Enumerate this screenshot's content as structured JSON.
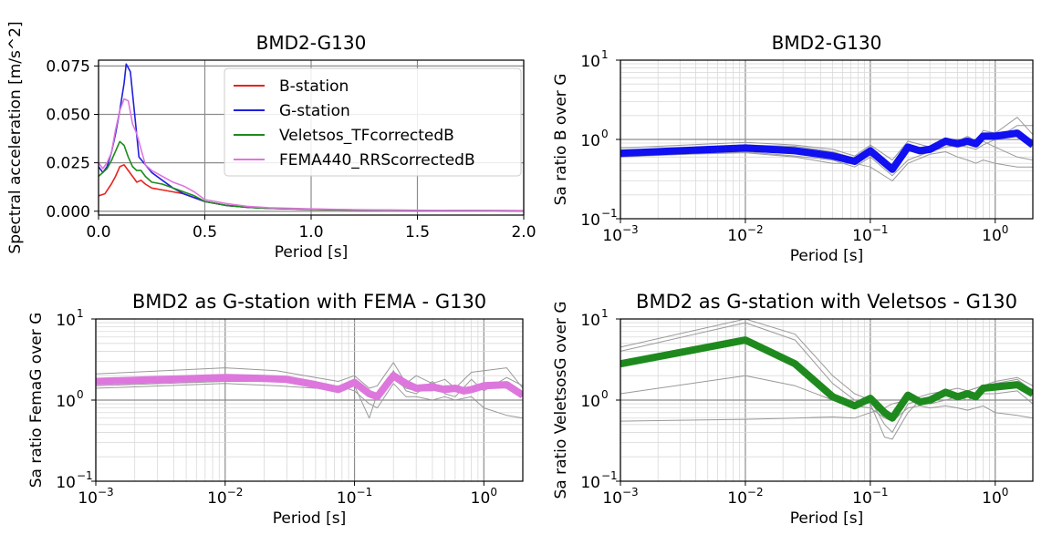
{
  "figure": {
    "background": "#ffffff"
  },
  "chart_data": [
    {
      "id": "p1",
      "type": "line",
      "title": "BMD2-G130",
      "xlabel": "Period [s]",
      "ylabel": "Spectral acceleration [m/s^2]",
      "xscale": "linear",
      "yscale": "linear",
      "xlim": [
        0,
        2
      ],
      "ylim": [
        -0.002,
        0.078
      ],
      "xticks": [
        0,
        0.5,
        1,
        1.5,
        2
      ],
      "xtick_labels": [
        "0.0",
        "0.5",
        "1.0",
        "1.5",
        "2.0"
      ],
      "yticks": [
        0,
        0.025,
        0.05,
        0.075
      ],
      "ytick_labels": [
        "0.000",
        "0.025",
        "0.050",
        "0.075"
      ],
      "grid": true,
      "legend_position": "upper-right",
      "series": [
        {
          "name": "B-station",
          "color": "#e8231d",
          "x": [
            0.0,
            0.03,
            0.06,
            0.08,
            0.1,
            0.12,
            0.14,
            0.16,
            0.18,
            0.2,
            0.22,
            0.25,
            0.3,
            0.35,
            0.4,
            0.45,
            0.5,
            0.6,
            0.7,
            0.8,
            1.0,
            1.2,
            1.5,
            2.0
          ],
          "y": [
            0.008,
            0.009,
            0.014,
            0.018,
            0.023,
            0.024,
            0.021,
            0.018,
            0.015,
            0.016,
            0.014,
            0.012,
            0.011,
            0.01,
            0.009,
            0.007,
            0.005,
            0.003,
            0.002,
            0.0015,
            0.0009,
            0.0006,
            0.0004,
            0.0002
          ]
        },
        {
          "name": "G-station",
          "color": "#1f1fe0",
          "x": [
            0.0,
            0.02,
            0.04,
            0.06,
            0.08,
            0.1,
            0.12,
            0.13,
            0.15,
            0.17,
            0.19,
            0.22,
            0.25,
            0.3,
            0.35,
            0.4,
            0.45,
            0.5,
            0.6,
            0.7,
            0.8,
            1.0,
            1.2,
            1.5,
            2.0
          ],
          "y": [
            0.023,
            0.02,
            0.023,
            0.03,
            0.04,
            0.052,
            0.066,
            0.076,
            0.072,
            0.05,
            0.028,
            0.024,
            0.02,
            0.016,
            0.012,
            0.009,
            0.007,
            0.005,
            0.003,
            0.002,
            0.0015,
            0.001,
            0.0007,
            0.0004,
            0.0002
          ]
        },
        {
          "name": "Veletsos_TFcorrectedB",
          "color": "#1e8a1e",
          "x": [
            0.0,
            0.02,
            0.04,
            0.06,
            0.08,
            0.1,
            0.12,
            0.14,
            0.16,
            0.18,
            0.2,
            0.22,
            0.25,
            0.3,
            0.35,
            0.4,
            0.45,
            0.5,
            0.6,
            0.7,
            0.8,
            1.0,
            1.2,
            1.5,
            2.0
          ],
          "y": [
            0.018,
            0.02,
            0.022,
            0.026,
            0.031,
            0.036,
            0.034,
            0.028,
            0.023,
            0.021,
            0.021,
            0.018,
            0.015,
            0.014,
            0.012,
            0.01,
            0.008,
            0.005,
            0.003,
            0.002,
            0.0015,
            0.001,
            0.0006,
            0.0004,
            0.0002
          ]
        },
        {
          "name": "FEMA440_RRScorrectedB",
          "color": "#dd77dd",
          "x": [
            0.0,
            0.02,
            0.04,
            0.06,
            0.08,
            0.1,
            0.12,
            0.14,
            0.16,
            0.18,
            0.2,
            0.22,
            0.25,
            0.3,
            0.35,
            0.4,
            0.45,
            0.5,
            0.6,
            0.7,
            0.8,
            1.0,
            1.2,
            1.5,
            2.0
          ],
          "y": [
            0.025,
            0.022,
            0.025,
            0.03,
            0.042,
            0.052,
            0.058,
            0.057,
            0.045,
            0.04,
            0.032,
            0.024,
            0.021,
            0.018,
            0.015,
            0.013,
            0.01,
            0.006,
            0.004,
            0.0025,
            0.0018,
            0.0012,
            0.0008,
            0.0005,
            0.0003
          ]
        }
      ]
    },
    {
      "id": "p2",
      "type": "line",
      "title": "BMD2-G130",
      "xlabel": "Period [s]",
      "ylabel": "Sa ratio B over G",
      "xscale": "log",
      "yscale": "log",
      "xlim": [
        0.001,
        2
      ],
      "ylim": [
        0.1,
        10
      ],
      "xticks": [
        0.001,
        0.01,
        0.1,
        1
      ],
      "xtick_labels": [
        "10",
        "10",
        "10",
        "10"
      ],
      "xtick_exponents": [
        "−3",
        "−2",
        "−1",
        "0"
      ],
      "yticks": [
        0.1,
        1,
        10
      ],
      "ytick_labels": [
        "10",
        "10",
        "10"
      ],
      "ytick_exponents": [
        "−1",
        "0",
        "1"
      ],
      "grid": true,
      "series": [
        {
          "name": "",
          "color": "#999999",
          "width": 1,
          "x": [
            0.001,
            0.01,
            0.025,
            0.05,
            0.075,
            0.1,
            0.15,
            0.2,
            0.3,
            0.4,
            0.5,
            0.6,
            0.7,
            0.8,
            1.0,
            1.5,
            2.0
          ],
          "y": [
            0.78,
            0.92,
            0.85,
            0.75,
            0.62,
            0.85,
            0.55,
            0.95,
            0.8,
            1.05,
            0.95,
            1.1,
            0.95,
            1.3,
            1.2,
            1.9,
            1.15
          ]
        },
        {
          "name": "",
          "color": "#999999",
          "width": 1,
          "x": [
            0.001,
            0.01,
            0.025,
            0.05,
            0.075,
            0.1,
            0.15,
            0.2,
            0.3,
            0.4,
            0.5,
            0.6,
            0.7,
            0.8,
            1.0,
            1.5,
            2.0
          ],
          "y": [
            0.6,
            0.7,
            0.62,
            0.55,
            0.45,
            0.6,
            0.35,
            0.55,
            0.7,
            0.8,
            0.85,
            0.8,
            0.75,
            0.85,
            1.0,
            1.5,
            1.5
          ]
        },
        {
          "name": "",
          "color": "#999999",
          "width": 1,
          "x": [
            0.001,
            0.01,
            0.025,
            0.05,
            0.075,
            0.1,
            0.15,
            0.2,
            0.3,
            0.4,
            0.5,
            0.6,
            0.7,
            0.8,
            1.0,
            1.5,
            2.0
          ],
          "y": [
            0.72,
            0.85,
            0.82,
            0.7,
            0.58,
            0.75,
            0.45,
            0.85,
            0.72,
            0.9,
            0.85,
            0.92,
            0.85,
            0.95,
            0.8,
            0.6,
            0.55
          ]
        },
        {
          "name": "",
          "color": "#999999",
          "width": 1,
          "x": [
            0.001,
            0.01,
            0.025,
            0.05,
            0.075,
            0.1,
            0.15,
            0.2,
            0.3,
            0.4,
            0.5,
            0.6,
            0.7,
            0.8,
            1.0,
            1.5,
            2.0
          ],
          "y": [
            0.62,
            0.68,
            0.6,
            0.5,
            0.5,
            0.45,
            0.3,
            0.5,
            0.65,
            0.7,
            0.6,
            0.55,
            0.5,
            0.55,
            0.5,
            0.45,
            0.45
          ]
        },
        {
          "name": "",
          "color": "#1010f0",
          "width": 8,
          "x": [
            0.001,
            0.01,
            0.025,
            0.05,
            0.075,
            0.1,
            0.15,
            0.2,
            0.25,
            0.3,
            0.4,
            0.5,
            0.6,
            0.7,
            0.8,
            1.0,
            1.5,
            2.0
          ],
          "y": [
            0.67,
            0.78,
            0.72,
            0.62,
            0.53,
            0.72,
            0.42,
            0.8,
            0.72,
            0.75,
            0.95,
            0.88,
            0.95,
            0.88,
            1.1,
            1.1,
            1.2,
            0.85
          ]
        }
      ]
    },
    {
      "id": "p3",
      "type": "line",
      "title": "BMD2 as G-station with FEMA - G130",
      "xlabel": "Period [s]",
      "ylabel": "Sa ratio FemaG over G",
      "xscale": "log",
      "yscale": "log",
      "xlim": [
        0.001,
        2
      ],
      "ylim": [
        0.1,
        10
      ],
      "xticks": [
        0.001,
        0.01,
        0.1,
        1
      ],
      "xtick_labels": [
        "10",
        "10",
        "10",
        "10"
      ],
      "xtick_exponents": [
        "−3",
        "−2",
        "−1",
        "0"
      ],
      "yticks": [
        0.1,
        1,
        10
      ],
      "ytick_labels": [
        "10",
        "10",
        "10"
      ],
      "ytick_exponents": [
        "−1",
        "0",
        "1"
      ],
      "grid": true,
      "series": [
        {
          "name": "",
          "color": "#999999",
          "width": 1,
          "x": [
            0.001,
            0.01,
            0.025,
            0.05,
            0.075,
            0.1,
            0.13,
            0.15,
            0.2,
            0.25,
            0.3,
            0.4,
            0.5,
            0.6,
            0.8,
            1.0,
            1.5,
            2.0
          ],
          "y": [
            2.1,
            2.5,
            2.3,
            1.9,
            1.7,
            2.0,
            1.4,
            1.5,
            2.9,
            1.6,
            2.0,
            1.6,
            1.8,
            1.4,
            2.2,
            2.3,
            2.5,
            1.4
          ]
        },
        {
          "name": "",
          "color": "#999999",
          "width": 1,
          "x": [
            0.001,
            0.01,
            0.025,
            0.05,
            0.075,
            0.1,
            0.13,
            0.15,
            0.2,
            0.25,
            0.3,
            0.4,
            0.5,
            0.6,
            0.8,
            1.0,
            1.5,
            2.0
          ],
          "y": [
            1.6,
            1.9,
            1.8,
            1.5,
            1.3,
            1.7,
            1.2,
            1.0,
            2.3,
            1.3,
            1.2,
            1.7,
            1.2,
            1.1,
            1.8,
            1.3,
            1.9,
            1.5
          ]
        },
        {
          "name": "",
          "color": "#999999",
          "width": 1,
          "x": [
            0.001,
            0.01,
            0.025,
            0.05,
            0.075,
            0.1,
            0.13,
            0.15,
            0.2,
            0.25,
            0.3,
            0.4,
            0.5,
            0.6,
            0.8,
            1.0,
            1.5,
            2.0
          ],
          "y": [
            1.4,
            1.6,
            1.5,
            1.4,
            1.5,
            1.3,
            0.9,
            0.8,
            1.6,
            1.1,
            1.1,
            1.0,
            1.1,
            1.0,
            1.1,
            0.8,
            0.65,
            0.6
          ]
        },
        {
          "name": "",
          "color": "#999999",
          "width": 1,
          "x": [
            0.001,
            0.01,
            0.025,
            0.05,
            0.075,
            0.1,
            0.13,
            0.15,
            0.2,
            0.25,
            0.3,
            0.4,
            0.5,
            0.6,
            0.8,
            1.0,
            1.5,
            2.0
          ],
          "y": [
            1.5,
            1.7,
            1.7,
            1.6,
            1.4,
            1.5,
            0.6,
            1.2,
            1.8,
            1.4,
            1.3,
            1.3,
            1.5,
            1.5,
            1.3,
            1.5,
            1.4,
            1.1
          ]
        },
        {
          "name": "",
          "color": "#dd77dd",
          "width": 8,
          "x": [
            0.001,
            0.01,
            0.02,
            0.03,
            0.05,
            0.075,
            0.1,
            0.13,
            0.15,
            0.2,
            0.25,
            0.3,
            0.4,
            0.5,
            0.6,
            0.7,
            0.8,
            1.0,
            1.5,
            2.0
          ],
          "y": [
            1.7,
            1.9,
            1.85,
            1.8,
            1.55,
            1.35,
            1.65,
            1.2,
            1.1,
            2.0,
            1.6,
            1.4,
            1.45,
            1.35,
            1.4,
            1.3,
            1.35,
            1.5,
            1.55,
            1.15
          ]
        }
      ]
    },
    {
      "id": "p4",
      "type": "line",
      "title": "BMD2 as G-station with Veletsos - G130",
      "xlabel": "Period [s]",
      "ylabel": "Sa ratio VeletsosG over G",
      "xscale": "log",
      "yscale": "log",
      "xlim": [
        0.001,
        2
      ],
      "ylim": [
        0.1,
        10
      ],
      "xticks": [
        0.001,
        0.01,
        0.1,
        1
      ],
      "xtick_labels": [
        "10",
        "10",
        "10",
        "10"
      ],
      "xtick_exponents": [
        "−3",
        "−2",
        "−1",
        "0"
      ],
      "yticks": [
        0.1,
        1,
        10
      ],
      "ytick_labels": [
        "10",
        "10",
        "10"
      ],
      "ytick_exponents": [
        "−1",
        "0",
        "1"
      ],
      "grid": true,
      "series": [
        {
          "name": "",
          "color": "#999999",
          "width": 1,
          "x": [
            0.001,
            0.01,
            0.025,
            0.05,
            0.075,
            0.1,
            0.13,
            0.15,
            0.2,
            0.25,
            0.3,
            0.4,
            0.5,
            0.6,
            0.8,
            1.0,
            1.5,
            2.0
          ],
          "y": [
            4.5,
            10.0,
            6.5,
            2.0,
            1.2,
            1.0,
            0.5,
            0.4,
            0.9,
            1.0,
            0.9,
            1.0,
            1.1,
            1.0,
            1.2,
            1.2,
            1.3,
            0.9
          ]
        },
        {
          "name": "",
          "color": "#999999",
          "width": 1,
          "x": [
            0.001,
            0.01,
            0.025,
            0.05,
            0.075,
            0.1,
            0.13,
            0.15,
            0.2,
            0.25,
            0.3,
            0.4,
            0.5,
            0.6,
            0.8,
            1.0,
            1.5,
            2.0
          ],
          "y": [
            4.0,
            9.0,
            5.5,
            1.6,
            1.0,
            0.9,
            0.35,
            0.33,
            0.7,
            1.0,
            1.1,
            1.3,
            1.2,
            1.3,
            1.5,
            1.6,
            1.8,
            1.3
          ]
        },
        {
          "name": "",
          "color": "#999999",
          "width": 1,
          "x": [
            0.001,
            0.01,
            0.025,
            0.05,
            0.075,
            0.1,
            0.13,
            0.15,
            0.2,
            0.25,
            0.3,
            0.4,
            0.5,
            0.6,
            0.8,
            1.0,
            1.5,
            2.0
          ],
          "y": [
            1.2,
            2.0,
            1.5,
            1.0,
            0.85,
            0.8,
            0.6,
            0.55,
            0.8,
            0.85,
            0.8,
            0.85,
            0.8,
            0.75,
            0.85,
            0.7,
            0.65,
            0.6
          ]
        },
        {
          "name": "",
          "color": "#999999",
          "width": 1,
          "x": [
            0.001,
            0.01,
            0.025,
            0.05,
            0.075,
            0.1,
            0.13,
            0.15,
            0.2,
            0.25,
            0.3,
            0.4,
            0.5,
            0.6,
            0.8,
            1.0,
            1.5,
            2.0
          ],
          "y": [
            0.55,
            0.58,
            0.6,
            0.62,
            0.6,
            0.7,
            0.8,
            0.9,
            1.0,
            1.1,
            1.2,
            1.3,
            1.4,
            1.3,
            1.5,
            1.7,
            1.9,
            1.5
          ]
        },
        {
          "name": "",
          "color": "#1e8a1e",
          "width": 8,
          "x": [
            0.001,
            0.01,
            0.025,
            0.05,
            0.075,
            0.1,
            0.13,
            0.15,
            0.2,
            0.25,
            0.3,
            0.4,
            0.5,
            0.6,
            0.7,
            0.8,
            1.0,
            1.5,
            2.0
          ],
          "y": [
            2.8,
            5.5,
            2.8,
            1.1,
            0.85,
            1.05,
            0.7,
            0.6,
            1.15,
            0.95,
            1.0,
            1.25,
            1.1,
            1.2,
            1.1,
            1.4,
            1.45,
            1.55,
            1.2
          ]
        }
      ]
    }
  ]
}
